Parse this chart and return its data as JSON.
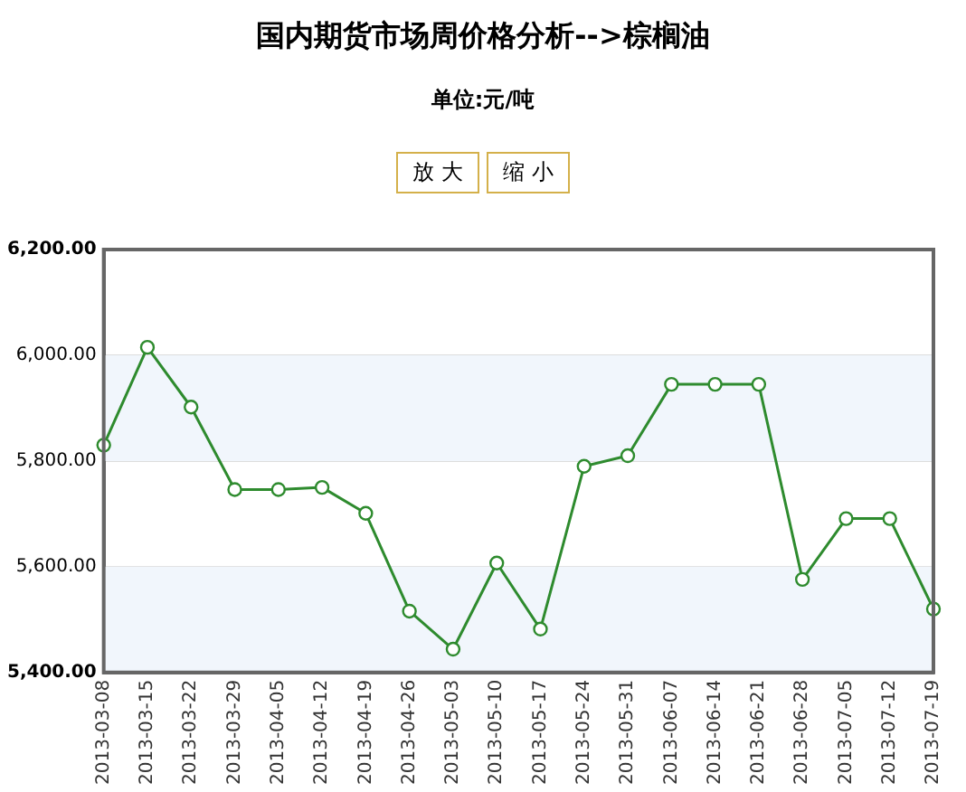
{
  "chart_data": {
    "type": "line",
    "title": "国内期货市场周价格分析-->棕榈油",
    "subtitle": "单位:元/吨",
    "annotations": [
      "放 大",
      "缩 小"
    ],
    "categories": [
      "2013-03-08",
      "2013-03-15",
      "2013-03-22",
      "2013-03-29",
      "2013-04-05",
      "2013-04-12",
      "2013-04-19",
      "2013-04-26",
      "2013-05-03",
      "2013-05-10",
      "2013-05-17",
      "2013-05-24",
      "2013-05-31",
      "2013-06-07",
      "2013-06-14",
      "2013-06-21",
      "2013-06-28",
      "2013-07-05",
      "2013-07-12",
      "2013-07-19"
    ],
    "series": [
      {
        "color": "#2e8b2e",
        "values": [
          5830,
          6015,
          5902,
          5746,
          5746,
          5750,
          5701,
          5516,
          5444,
          5607,
          5482,
          5790,
          5810,
          5945,
          5945,
          5945,
          5576,
          5691,
          5691,
          5520
        ]
      }
    ],
    "ylim": [
      5400,
      6200
    ],
    "yticks": [
      {
        "value": 5400,
        "label": "5,400.00"
      },
      {
        "value": 5600,
        "label": "5,600.00"
      },
      {
        "value": 5800,
        "label": "5,800.00"
      },
      {
        "value": 6000,
        "label": "6,000.00"
      },
      {
        "value": 6200,
        "label": "6,200.00"
      }
    ],
    "grid": "y",
    "marker": "circle",
    "line_style": "solid"
  }
}
